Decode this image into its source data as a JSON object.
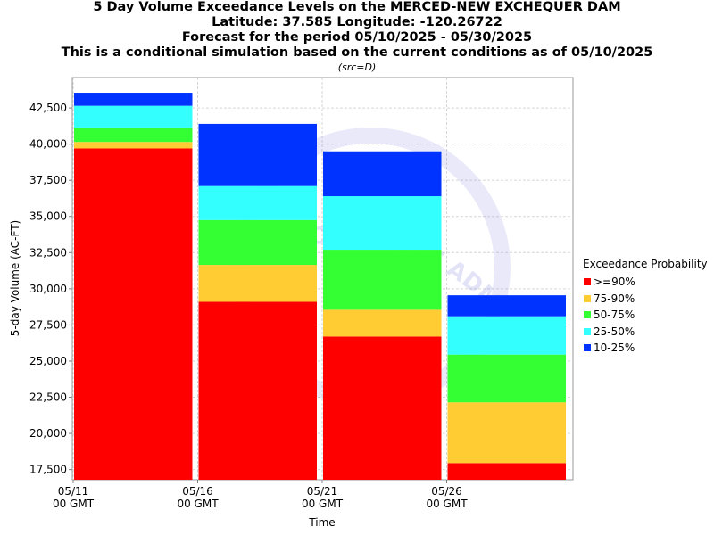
{
  "titles": {
    "line1": "5 Day Volume Exceedance Levels on the MERCED-NEW EXCHEQUER DAM",
    "line2": "Latitude: 37.585 Longitude: -120.26722",
    "line3": "Forecast for the period 05/10/2025 - 05/30/2025",
    "line4": "This is a conditional simulation based on the current conditions as of 05/10/2025",
    "src": "(src=D)"
  },
  "legend": {
    "title": "Exceedance Probability",
    "items": [
      {
        "label": ">=90%",
        "color": "#ff0000"
      },
      {
        "label": "75-90%",
        "color": "#ffcc33"
      },
      {
        "label": "50-75%",
        "color": "#33ff33"
      },
      {
        "label": "25-50%",
        "color": "#33ffff"
      },
      {
        "label": "10-25%",
        "color": "#0033ff"
      }
    ]
  },
  "watermark": {
    "text": "HYDROSPHERIC ADMINISTRATION"
  },
  "chart_data": {
    "type": "bar",
    "stacked": true,
    "xlabel": "Time",
    "ylabel": "5-day Volume (AC-FT)",
    "ylim": [
      16800,
      44600
    ],
    "yticks": [
      17500,
      20000,
      22500,
      25000,
      27500,
      30000,
      32500,
      35000,
      37500,
      40000,
      42500
    ],
    "ytick_labels": [
      "17,500",
      "20,000",
      "22,500",
      "25,000",
      "27,500",
      "30,000",
      "32,500",
      "35,000",
      "37,500",
      "40,000",
      "42,500"
    ],
    "xticks": [
      {
        "line1": "05/11",
        "line2": "00 GMT"
      },
      {
        "line1": "05/16",
        "line2": "00 GMT"
      },
      {
        "line1": "05/21",
        "line2": "00 GMT"
      },
      {
        "line1": "05/26",
        "line2": "00 GMT"
      }
    ],
    "grid": true,
    "legend_position": "right",
    "bars": [
      {
        "start": "05/11",
        "end": "05/16",
        "levels": [
          39700,
          40150,
          41150,
          42650,
          43550
        ]
      },
      {
        "start": "05/16",
        "end": "05/21",
        "levels": [
          29100,
          31650,
          34750,
          37100,
          41400
        ]
      },
      {
        "start": "05/21",
        "end": "05/26",
        "levels": [
          26700,
          28550,
          32700,
          36400,
          39500
        ]
      },
      {
        "start": "05/26",
        "end": "05/31",
        "levels": [
          17950,
          22150,
          25450,
          28100,
          29550
        ]
      }
    ],
    "series_order": [
      ">=90%",
      "75-90%",
      "50-75%",
      "25-50%",
      "10-25%"
    ]
  }
}
